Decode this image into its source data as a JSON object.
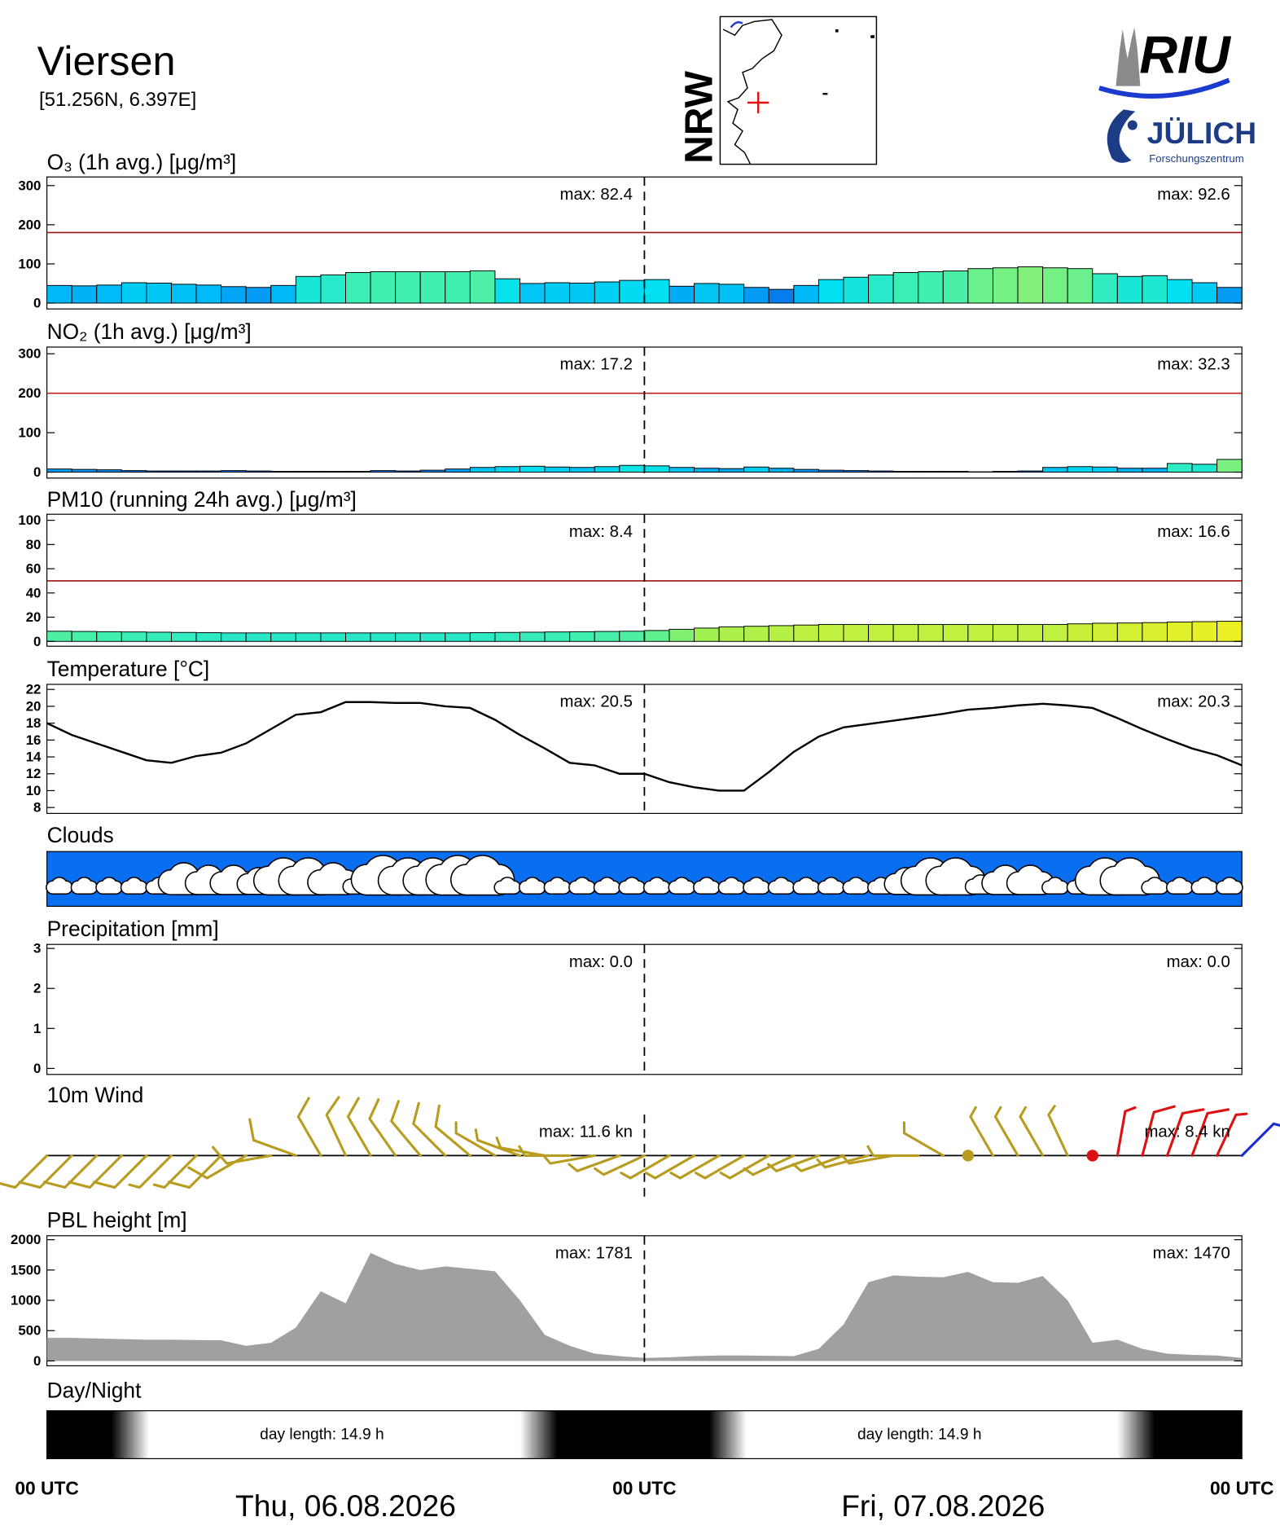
{
  "header": {
    "title": "Viersen",
    "coords": "[51.256N,  6.397E]",
    "map_label": "NRW",
    "logo_top": "RIU",
    "logo_bottom": "JÜLICH",
    "logo_sub": "Forschungszentrum"
  },
  "chart_data": [
    {
      "type": "bar",
      "title": "O₃ (1h avg.) [μg/m³]",
      "xlim": [
        0,
        48
      ],
      "x": [
        0,
        1,
        2,
        3,
        4,
        5,
        6,
        7,
        8,
        9,
        10,
        11,
        12,
        13,
        14,
        15,
        16,
        17,
        18,
        19,
        20,
        21,
        22,
        23,
        24,
        25,
        26,
        27,
        28,
        29,
        30,
        31,
        32,
        33,
        34,
        35,
        36,
        37,
        38,
        39,
        40,
        41,
        42,
        43,
        44,
        45,
        46,
        47
      ],
      "values": [
        45,
        44,
        46,
        52,
        51,
        48,
        46,
        42,
        40,
        45,
        68,
        72,
        78,
        80,
        80,
        80,
        80,
        82.4,
        62,
        50,
        52,
        51,
        54,
        58,
        60,
        43,
        50,
        48,
        40,
        35,
        45,
        60,
        66,
        72,
        78,
        80,
        82,
        88,
        90,
        92.6,
        90,
        88,
        75,
        68,
        70,
        60,
        52,
        40
      ],
      "ylim": [
        -15,
        322
      ],
      "yticks": [
        0,
        100,
        200,
        300
      ],
      "limit": 180,
      "limit_color": "#a01010",
      "colorscale": [
        [
          30,
          "#0a60e8"
        ],
        [
          45,
          "#00b8f8"
        ],
        [
          60,
          "#00e0f0"
        ],
        [
          80,
          "#40f0b0"
        ],
        [
          95,
          "#90f070"
        ]
      ],
      "max_values": [
        82.4,
        92.6
      ],
      "max_labels": [
        "max:  82.4",
        "max:  92.6"
      ]
    },
    {
      "type": "bar",
      "title": "NO₂ (1h avg.) [μg/m³]",
      "xlim": [
        0,
        48
      ],
      "x": [
        0,
        1,
        2,
        3,
        4,
        5,
        6,
        7,
        8,
        9,
        10,
        11,
        12,
        13,
        14,
        15,
        16,
        17,
        18,
        19,
        20,
        21,
        22,
        23,
        24,
        25,
        26,
        27,
        28,
        29,
        30,
        31,
        32,
        33,
        34,
        35,
        36,
        37,
        38,
        39,
        40,
        41,
        42,
        43,
        44,
        45,
        46,
        47
      ],
      "values": [
        8,
        7,
        6,
        4,
        3,
        3,
        3,
        4,
        3,
        2,
        2,
        2,
        2,
        4,
        3,
        5,
        8,
        12,
        14,
        15,
        13,
        12,
        14,
        17.2,
        16,
        12,
        10,
        9,
        13,
        10,
        7,
        5,
        4,
        3,
        2,
        2,
        2,
        1,
        2,
        3,
        12,
        14,
        13,
        10,
        10,
        22,
        20,
        32.3
      ],
      "ylim": [
        -15,
        317
      ],
      "yticks": [
        0,
        100,
        200,
        300
      ],
      "limit": 200,
      "limit_color": "#c02020",
      "colorscale": [
        [
          0,
          "#0030c0"
        ],
        [
          5,
          "#0080f0"
        ],
        [
          15,
          "#00e0f0"
        ],
        [
          25,
          "#40f0b0"
        ],
        [
          35,
          "#90f070"
        ]
      ],
      "max_values": [
        17.2,
        32.3
      ],
      "max_labels": [
        "max:  17.2",
        "max:  32.3"
      ]
    },
    {
      "type": "bar",
      "title": "PM10 (running 24h avg.) [μg/m³]",
      "xlim": [
        0,
        48
      ],
      "x": [
        0,
        1,
        2,
        3,
        4,
        5,
        6,
        7,
        8,
        9,
        10,
        11,
        12,
        13,
        14,
        15,
        16,
        17,
        18,
        19,
        20,
        21,
        22,
        23,
        24,
        25,
        26,
        27,
        28,
        29,
        30,
        31,
        32,
        33,
        34,
        35,
        36,
        37,
        38,
        39,
        40,
        41,
        42,
        43,
        44,
        45,
        46,
        47
      ],
      "values": [
        8.4,
        8.2,
        8,
        7.8,
        7.6,
        7.4,
        7.2,
        7,
        7,
        7,
        7,
        7,
        7,
        7,
        7,
        7,
        7,
        7.2,
        7.4,
        7.6,
        7.8,
        8,
        8.2,
        8.4,
        9,
        10,
        11,
        12,
        12.5,
        13,
        13.5,
        14,
        14,
        14,
        14,
        14,
        14,
        14,
        14,
        14,
        14,
        14.5,
        15,
        15.2,
        15.5,
        16,
        16.3,
        16.6
      ],
      "ylim": [
        -4,
        105
      ],
      "yticks": [
        0,
        20,
        40,
        60,
        80,
        100
      ],
      "limit": 50,
      "limit_color": "#a01010",
      "colorscale": [
        [
          6,
          "#10e0e0"
        ],
        [
          8,
          "#40f0b0"
        ],
        [
          11,
          "#a0f050"
        ],
        [
          14,
          "#c0f040"
        ],
        [
          17,
          "#f0f020"
        ]
      ],
      "max_values": [
        8.4,
        16.6
      ],
      "max_labels": [
        "max:  8.4",
        "max:  16.6"
      ]
    },
    {
      "type": "line",
      "title": "Temperature [°C]",
      "xlim": [
        0,
        48
      ],
      "x": [
        0,
        1,
        2,
        3,
        4,
        5,
        6,
        7,
        8,
        9,
        10,
        11,
        12,
        13,
        14,
        15,
        16,
        17,
        18,
        19,
        20,
        21,
        22,
        23,
        24,
        25,
        26,
        27,
        28,
        29,
        30,
        31,
        32,
        33,
        34,
        35,
        36,
        37,
        38,
        39,
        40,
        41,
        42,
        43,
        44,
        45,
        46,
        47,
        48
      ],
      "values": [
        18,
        16.6,
        15.6,
        14.6,
        13.6,
        13.3,
        14.1,
        14.5,
        15.6,
        17.3,
        19,
        19.3,
        20.5,
        20.5,
        20.4,
        20.4,
        20,
        19.8,
        18.4,
        16.6,
        15,
        13.3,
        13,
        12,
        12,
        11,
        10.4,
        10,
        10,
        12.2,
        14.6,
        16.4,
        17.5,
        17.9,
        18.3,
        18.7,
        19.1,
        19.6,
        19.8,
        20.1,
        20.3,
        20.1,
        19.8,
        18.6,
        17.3,
        16.1,
        15,
        14.2,
        13
      ],
      "color": "#000000",
      "ylim": [
        7.3,
        22.6
      ],
      "yticks": [
        8,
        10,
        12,
        14,
        16,
        18,
        20,
        22
      ],
      "max_values": [
        20.5,
        20.3
      ],
      "max_labels": [
        "max:  20.5",
        "max:  20.3"
      ]
    },
    {
      "type": "clouds",
      "title": "Clouds",
      "xlim": [
        0,
        48
      ],
      "background": "#0a6ef0",
      "x": [
        0,
        1,
        2,
        3,
        4,
        5,
        6,
        7,
        8,
        9,
        10,
        11,
        12,
        13,
        14,
        15,
        16,
        17,
        18,
        19,
        20,
        21,
        22,
        23,
        24,
        25,
        26,
        27,
        28,
        29,
        30,
        31,
        32,
        33,
        34,
        35,
        36,
        37,
        38,
        39,
        40,
        41,
        42,
        43,
        44,
        45,
        46,
        47
      ],
      "values": [
        20,
        20,
        20,
        20,
        20,
        50,
        45,
        45,
        40,
        60,
        60,
        50,
        25,
        65,
        60,
        60,
        65,
        65,
        20,
        20,
        20,
        20,
        20,
        20,
        20,
        20,
        20,
        20,
        20,
        20,
        20,
        20,
        20,
        20,
        40,
        60,
        60,
        25,
        45,
        45,
        20,
        20,
        60,
        60,
        20,
        20,
        20,
        20
      ]
    },
    {
      "type": "bar",
      "title": "Precipitation [mm]",
      "xlim": [
        0,
        48
      ],
      "color": "#1040e0",
      "x": [
        0,
        1,
        2,
        3,
        4,
        5,
        6,
        7,
        8,
        9,
        10,
        11,
        12,
        13,
        14,
        15,
        16,
        17,
        18,
        19,
        20,
        21,
        22,
        23,
        24,
        25,
        26,
        27,
        28,
        29,
        30,
        31,
        32,
        33,
        34,
        35,
        36,
        37,
        38,
        39,
        40,
        41,
        42,
        43,
        44,
        45,
        46,
        47
      ],
      "values": [
        0,
        0,
        0,
        0,
        0,
        0,
        0,
        0,
        0,
        0,
        0,
        0,
        0,
        0,
        0,
        0,
        0,
        0,
        0,
        0,
        0,
        0,
        0,
        0,
        0,
        0,
        0,
        0,
        0,
        0,
        0,
        0,
        0,
        0,
        0,
        0,
        0,
        0,
        0,
        0,
        0,
        0,
        0,
        0,
        0,
        0,
        0,
        0
      ],
      "ylim": [
        -0.15,
        3.1
      ],
      "yticks": [
        0,
        1,
        2,
        3
      ],
      "max_values": [
        0.0,
        0.0
      ],
      "max_labels": [
        "max:   0.0",
        "max:   0.0"
      ]
    },
    {
      "type": "barbs",
      "title": "10m Wind",
      "xlim": [
        0,
        48
      ],
      "x": [
        0,
        1,
        2,
        3,
        4,
        5,
        6,
        7,
        8,
        9,
        10,
        11,
        12,
        13,
        14,
        15,
        16,
        17,
        18,
        19,
        20,
        21,
        22,
        23,
        24,
        25,
        26,
        27,
        28,
        29,
        30,
        31,
        32,
        33,
        34,
        35,
        36,
        37,
        38,
        39,
        40,
        41,
        42,
        43,
        44,
        45,
        46,
        47,
        48
      ],
      "values": [
        8,
        8,
        8,
        8,
        8,
        7,
        7,
        8,
        9,
        10,
        11,
        11.6,
        11,
        11,
        10,
        10,
        9,
        8,
        7,
        6,
        6,
        5,
        5,
        5,
        5,
        5,
        5,
        5,
        5,
        5,
        5,
        5,
        6,
        6,
        6,
        7,
        6,
        0,
        7,
        7,
        6,
        6,
        0,
        7,
        8,
        8.4,
        8,
        7,
        6
      ],
      "directions": [
        225,
        225,
        225,
        225,
        225,
        225,
        225,
        225,
        240,
        260,
        290,
        330,
        335,
        330,
        325,
        320,
        315,
        310,
        300,
        290,
        280,
        270,
        260,
        250,
        245,
        240,
        240,
        240,
        240,
        240,
        245,
        250,
        250,
        255,
        260,
        270,
        300,
        0,
        330,
        330,
        330,
        335,
        0,
        10,
        15,
        20,
        20,
        25,
        45
      ],
      "colors": [
        "#b89c20",
        "#b89c20",
        "#b89c20",
        "#b89c20",
        "#b89c20",
        "#b89c20",
        "#b89c20",
        "#b89c20",
        "#b89c20",
        "#b89c20",
        "#b89c20",
        "#b89c20",
        "#b89c20",
        "#b89c20",
        "#b89c20",
        "#b89c20",
        "#b89c20",
        "#b89c20",
        "#b89c20",
        "#b89c20",
        "#b89c20",
        "#b89c20",
        "#b89c20",
        "#b89c20",
        "#b89c20",
        "#b89c20",
        "#b89c20",
        "#b89c20",
        "#b89c20",
        "#b89c20",
        "#b89c20",
        "#b89c20",
        "#b89c20",
        "#b89c20",
        "#b89c20",
        "#b89c20",
        "#b89c20",
        "#b89c20",
        "#b89c20",
        "#b89c20",
        "#b89c20",
        "#b89c20",
        "#dd1111",
        "#dd1111",
        "#dd1111",
        "#dd1111",
        "#dd1111",
        "#dd1111",
        "#1a2ed0"
      ],
      "max_values": [
        11.6,
        8.4
      ],
      "max_labels": [
        "max:  11.6 kn",
        "max:  8.4 kn"
      ]
    },
    {
      "type": "area",
      "title": "PBL height [m]",
      "xlim": [
        0,
        48
      ],
      "color": "#a0a0a0",
      "x": [
        0,
        1,
        2,
        3,
        4,
        5,
        6,
        7,
        8,
        9,
        10,
        11,
        12,
        13,
        14,
        15,
        16,
        17,
        18,
        19,
        20,
        21,
        22,
        23,
        24,
        25,
        26,
        27,
        28,
        29,
        30,
        31,
        32,
        33,
        34,
        35,
        36,
        37,
        38,
        39,
        40,
        41,
        42,
        43,
        44,
        45,
        46,
        47,
        48
      ],
      "values": [
        380,
        380,
        370,
        360,
        350,
        350,
        345,
        340,
        250,
        300,
        550,
        1150,
        950,
        1781,
        1600,
        1500,
        1560,
        1520,
        1480,
        1000,
        430,
        250,
        120,
        80,
        50,
        60,
        80,
        90,
        90,
        85,
        80,
        200,
        600,
        1300,
        1410,
        1390,
        1380,
        1470,
        1300,
        1290,
        1400,
        1000,
        300,
        350,
        200,
        120,
        100,
        90,
        50
      ],
      "ylim": [
        -80,
        2065
      ],
      "yticks": [
        0,
        500,
        1000,
        1500,
        2000
      ],
      "max_values": [
        1781,
        1470
      ],
      "max_labels": [
        "max:  1781",
        "max:  1470"
      ]
    },
    {
      "type": "daynight",
      "title": "Day/Night",
      "xlim": [
        0,
        48
      ],
      "sunrise": [
        3.6,
        27.6
      ],
      "sunset": [
        18.5,
        42.5
      ],
      "values": [
        14.9,
        14.9
      ],
      "value_labels": [
        "day length:  14.9 h",
        "day length:  14.9 h"
      ],
      "xticks": [
        {
          "value": 0,
          "label": "00 UTC"
        },
        {
          "value": 24,
          "label": "00 UTC"
        },
        {
          "value": 48,
          "label": "00 UTC"
        }
      ],
      "dates": [
        "Thu, 06.08.2026",
        "Fri, 07.08.2026"
      ]
    }
  ]
}
